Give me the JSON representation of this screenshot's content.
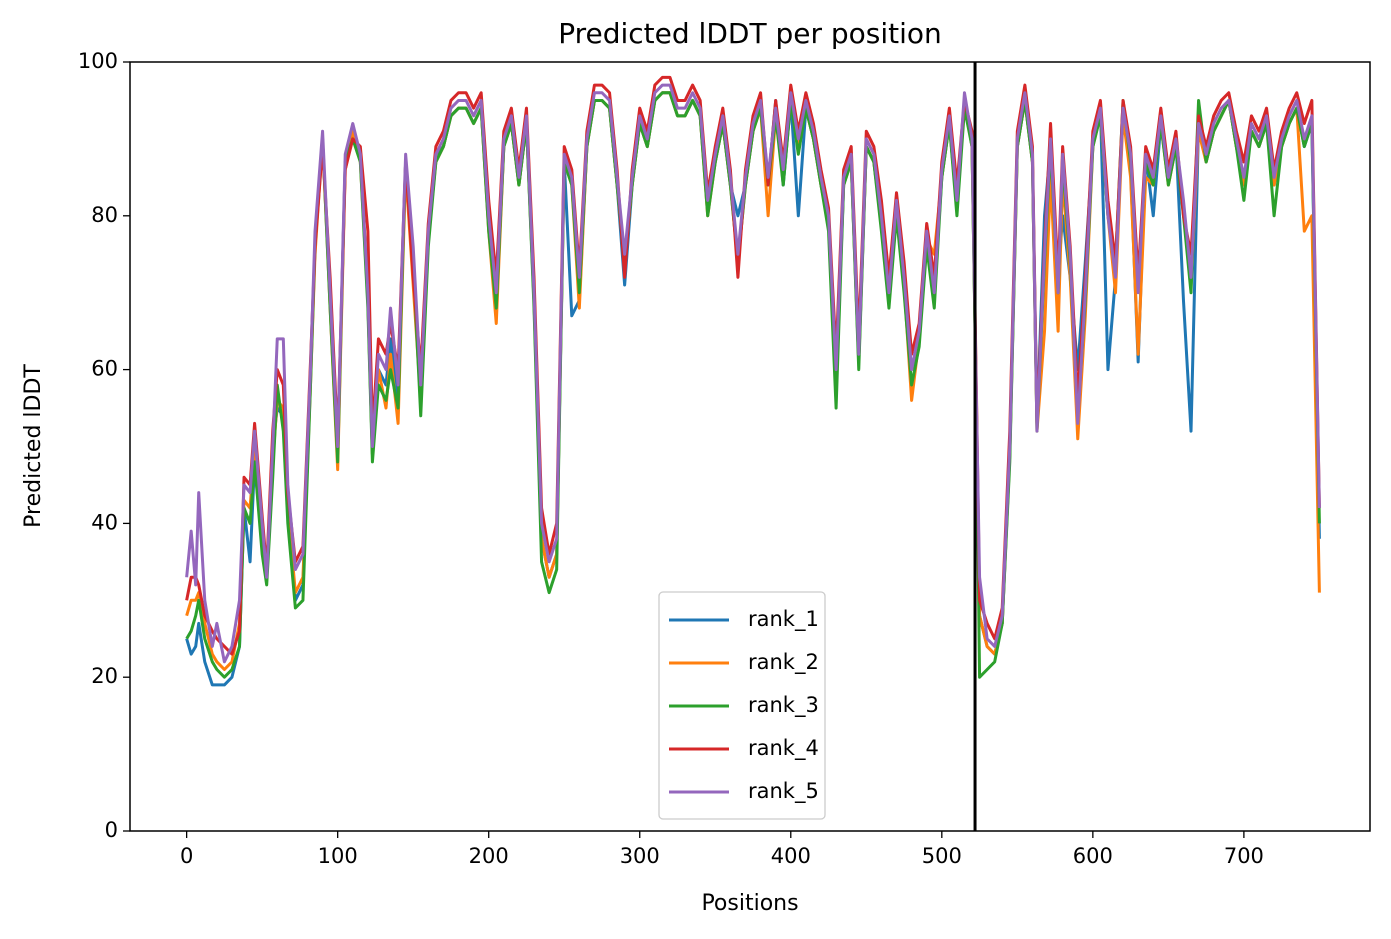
{
  "chart_data": {
    "type": "line",
    "title": "Predicted lDDT per position",
    "xlabel": "Positions",
    "ylabel": "Predicted lDDT",
    "xlim": [
      -37.5,
      783.5
    ],
    "ylim": [
      0,
      100
    ],
    "xticks": [
      0,
      100,
      200,
      300,
      400,
      500,
      600,
      700
    ],
    "yticks": [
      0,
      20,
      40,
      60,
      80,
      100
    ],
    "vline": 522,
    "vline_color": "#000000",
    "legend": "lower center",
    "x": [
      0,
      3,
      6,
      8,
      12,
      17,
      20,
      25,
      30,
      35,
      38,
      42,
      45,
      50,
      53,
      57,
      60,
      64,
      67,
      72,
      77,
      82,
      85,
      90,
      95,
      100,
      105,
      110,
      115,
      120,
      123,
      127,
      132,
      135,
      140,
      145,
      150,
      155,
      160,
      165,
      170,
      175,
      180,
      185,
      190,
      195,
      200,
      205,
      210,
      215,
      220,
      225,
      230,
      235,
      240,
      245,
      250,
      255,
      260,
      265,
      270,
      275,
      280,
      285,
      290,
      295,
      300,
      305,
      310,
      315,
      320,
      325,
      330,
      335,
      340,
      345,
      350,
      355,
      360,
      365,
      370,
      375,
      380,
      385,
      390,
      395,
      400,
      405,
      410,
      415,
      420,
      425,
      430,
      435,
      440,
      445,
      450,
      455,
      460,
      465,
      470,
      475,
      480,
      485,
      490,
      495,
      500,
      505,
      510,
      515,
      520,
      523,
      525,
      530,
      535,
      540,
      545,
      550,
      555,
      560,
      563,
      568,
      572,
      577,
      580,
      585,
      590,
      595,
      600,
      605,
      610,
      615,
      620,
      625,
      630,
      635,
      640,
      645,
      650,
      655,
      660,
      665,
      670,
      675,
      680,
      685,
      690,
      695,
      700,
      705,
      710,
      715,
      720,
      725,
      730,
      735,
      740,
      745,
      750
    ],
    "series": [
      {
        "name": "rank_1",
        "color": "#1f77b4",
        "values": [
          25,
          23,
          24,
          27,
          22,
          19,
          19,
          19,
          20,
          24,
          42,
          35,
          48,
          37,
          33,
          50,
          55,
          54,
          42,
          30,
          32,
          59,
          76,
          90,
          69,
          49,
          87,
          91,
          88,
          69,
          49,
          60,
          58,
          64,
          56,
          87,
          74,
          56,
          77,
          88,
          89,
          93,
          94,
          94,
          92,
          94,
          79,
          68,
          89,
          92,
          84,
          92,
          69,
          38,
          33,
          36,
          87,
          67,
          69,
          89,
          95,
          95,
          94,
          84,
          71,
          84,
          92,
          89,
          95,
          96,
          96,
          93,
          93,
          95,
          93,
          81,
          87,
          92,
          84,
          80,
          84,
          91,
          95,
          84,
          95,
          84,
          95,
          80,
          94,
          90,
          84,
          79,
          58,
          84,
          87,
          61,
          89,
          87,
          79,
          69,
          81,
          71,
          60,
          64,
          77,
          70,
          85,
          92,
          81,
          95,
          89,
          54,
          28,
          24,
          23,
          27,
          49,
          89,
          95,
          87,
          53,
          80,
          89,
          72,
          80,
          72,
          60,
          74,
          89,
          94,
          60,
          72,
          94,
          86,
          61,
          88,
          80,
          92,
          86,
          90,
          69,
          52,
          92,
          87,
          91,
          93,
          95,
          89,
          84,
          91,
          89,
          92,
          84,
          89,
          92,
          94,
          89,
          92,
          38
        ]
      },
      {
        "name": "rank_2",
        "color": "#ff7f0e",
        "values": [
          28,
          30,
          30,
          31,
          27,
          23,
          22,
          21,
          22,
          27,
          43,
          42,
          50,
          38,
          33,
          48,
          56,
          55,
          42,
          31,
          33,
          58,
          75,
          90,
          68,
          47,
          86,
          91,
          87,
          69,
          49,
          60,
          55,
          62,
          53,
          86,
          71,
          56,
          77,
          87,
          89,
          93,
          94,
          94,
          92,
          94,
          78,
          66,
          89,
          92,
          84,
          92,
          69,
          38,
          33,
          36,
          87,
          84,
          68,
          89,
          95,
          95,
          94,
          84,
          74,
          84,
          92,
          89,
          95,
          96,
          96,
          93,
          93,
          95,
          93,
          80,
          87,
          92,
          84,
          74,
          84,
          91,
          94,
          80,
          93,
          85,
          95,
          89,
          94,
          90,
          84,
          79,
          59,
          84,
          87,
          61,
          89,
          87,
          79,
          69,
          81,
          71,
          56,
          64,
          77,
          75,
          85,
          92,
          81,
          95,
          89,
          54,
          28,
          24,
          23,
          27,
          49,
          89,
          95,
          87,
          52,
          65,
          85,
          65,
          85,
          72,
          51,
          67,
          89,
          93,
          80,
          70,
          93,
          85,
          62,
          85,
          84,
          92,
          84,
          89,
          81,
          71,
          91,
          87,
          91,
          93,
          95,
          89,
          84,
          91,
          89,
          92,
          84,
          89,
          92,
          94,
          78,
          80,
          31
        ]
      },
      {
        "name": "rank_3",
        "color": "#2ca02c",
        "values": [
          25,
          26,
          28,
          30,
          25,
          22,
          21,
          20,
          21,
          24,
          42,
          40,
          48,
          36,
          32,
          46,
          58,
          52,
          40,
          29,
          30,
          58,
          76,
          90,
          68,
          48,
          87,
          90,
          87,
          68,
          48,
          58,
          56,
          60,
          55,
          87,
          74,
          54,
          76,
          87,
          89,
          93,
          94,
          94,
          92,
          94,
          78,
          68,
          89,
          92,
          84,
          92,
          68,
          35,
          31,
          34,
          87,
          84,
          70,
          89,
          95,
          95,
          94,
          84,
          74,
          84,
          92,
          89,
          95,
          96,
          96,
          93,
          93,
          95,
          93,
          80,
          87,
          92,
          84,
          74,
          84,
          91,
          94,
          84,
          93,
          84,
          95,
          88,
          94,
          90,
          84,
          78,
          55,
          84,
          87,
          60,
          89,
          87,
          78,
          68,
          80,
          70,
          58,
          63,
          76,
          68,
          85,
          92,
          80,
          94,
          89,
          53,
          20,
          21,
          22,
          27,
          48,
          89,
          95,
          87,
          52,
          74,
          89,
          70,
          87,
          74,
          54,
          69,
          89,
          93,
          80,
          74,
          95,
          87,
          72,
          87,
          84,
          92,
          84,
          89,
          80,
          70,
          95,
          87,
          91,
          93,
          95,
          89,
          82,
          91,
          89,
          92,
          80,
          89,
          92,
          94,
          89,
          92,
          40
        ]
      },
      {
        "name": "rank_4",
        "color": "#d62728",
        "values": [
          30,
          33,
          33,
          32,
          28,
          26,
          25,
          24,
          23,
          26,
          46,
          45,
          53,
          41,
          34,
          52,
          60,
          58,
          44,
          35,
          37,
          61,
          76,
          89,
          72,
          51,
          86,
          90,
          89,
          78,
          52,
          64,
          62,
          66,
          60,
          87,
          72,
          60,
          79,
          89,
          91,
          95,
          96,
          96,
          94,
          96,
          82,
          72,
          91,
          94,
          86,
          94,
          72,
          42,
          36,
          40,
          89,
          86,
          73,
          91,
          97,
          97,
          96,
          86,
          72,
          86,
          94,
          91,
          97,
          98,
          98,
          95,
          95,
          97,
          95,
          83,
          89,
          94,
          86,
          72,
          86,
          93,
          96,
          84,
          95,
          87,
          97,
          91,
          96,
          92,
          86,
          81,
          62,
          86,
          89,
          64,
          91,
          89,
          82,
          72,
          83,
          74,
          62,
          66,
          79,
          72,
          87,
          94,
          84,
          95,
          91,
          56,
          30,
          27,
          25,
          29,
          52,
          91,
          97,
          89,
          53,
          76,
          92,
          72,
          89,
          76,
          56,
          72,
          91,
          95,
          82,
          74,
          95,
          89,
          72,
          89,
          86,
          94,
          86,
          91,
          80,
          75,
          93,
          89,
          93,
          95,
          96,
          91,
          87,
          93,
          91,
          94,
          86,
          91,
          94,
          96,
          92,
          95,
          42
        ]
      },
      {
        "name": "rank_5",
        "color": "#9467bd",
        "values": [
          33,
          39,
          32,
          44,
          30,
          24,
          27,
          22,
          24,
          30,
          45,
          44,
          52,
          40,
          33,
          50,
          64,
          64,
          45,
          34,
          36,
          60,
          78,
          91,
          70,
          50,
          88,
          92,
          88,
          70,
          50,
          62,
          60,
          68,
          58,
          88,
          76,
          58,
          78,
          88,
          90,
          94,
          95,
          95,
          93,
          95,
          80,
          70,
          90,
          93,
          85,
          93,
          70,
          40,
          35,
          38,
          88,
          85,
          72,
          90,
          96,
          96,
          95,
          85,
          75,
          85,
          93,
          90,
          96,
          97,
          97,
          94,
          94,
          96,
          94,
          82,
          88,
          93,
          85,
          75,
          85,
          92,
          95,
          85,
          94,
          86,
          96,
          90,
          95,
          91,
          85,
          80,
          60,
          85,
          88,
          62,
          90,
          88,
          80,
          70,
          82,
          72,
          60,
          65,
          78,
          70,
          86,
          93,
          82,
          96,
          90,
          55,
          33,
          25,
          24,
          28,
          50,
          90,
          96,
          88,
          52,
          75,
          90,
          70,
          88,
          75,
          53,
          70,
          90,
          94,
          80,
          72,
          94,
          88,
          70,
          88,
          85,
          93,
          85,
          90,
          82,
          72,
          92,
          88,
          92,
          94,
          95,
          90,
          85,
          92,
          90,
          93,
          85,
          90,
          93,
          95,
          90,
          93,
          42
        ]
      }
    ]
  }
}
